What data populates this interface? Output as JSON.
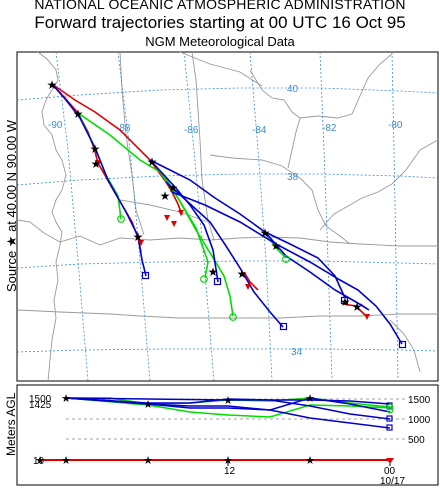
{
  "header": {
    "agency": "NATIONAL OCEANIC ATMOSPHERIC ADMINISTRATION",
    "title": "Forward trajectories starting at 00 UTC 16 Oct 95",
    "dataset": "NGM  Meteorological Data"
  },
  "side": {
    "source": "Source ★ at  40.00 N  90.00 W",
    "height_axis": "Meters AGL"
  },
  "map": {
    "lon_labels": [
      "-90",
      "-88",
      "-86",
      "-84",
      "-82",
      "-80"
    ],
    "lat_labels": [
      "40",
      "38",
      "34"
    ]
  },
  "height_panel": {
    "y_ticks": [
      "1500",
      "1000",
      "500"
    ],
    "left_labels": [
      "1500",
      "1425",
      "10"
    ],
    "time_labels": [
      "12",
      "00",
      "10/17"
    ]
  },
  "colors": {
    "red": "#e00000",
    "blue": "#0000cc",
    "green": "#00dd00",
    "grid": "#3a8ed8",
    "border": "#9a9a9a"
  }
}
